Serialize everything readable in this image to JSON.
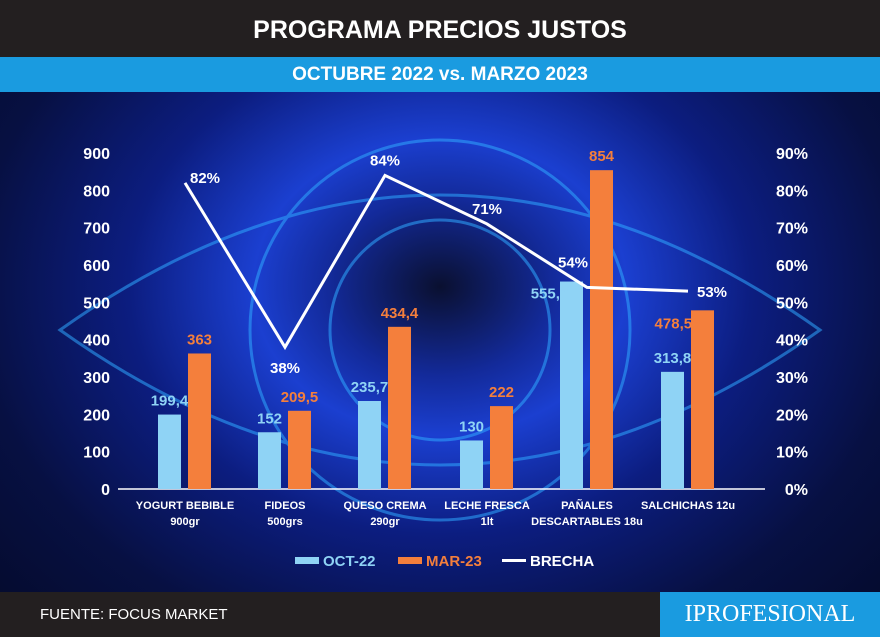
{
  "header": {
    "title": "PROGRAMA PRECIOS JUSTOS",
    "subtitle": "OCTUBRE 2022 vs. MARZO 2023"
  },
  "footer": {
    "source": "FUENTE: FOCUS MARKET",
    "brand": "IPROFESIONAL"
  },
  "chart_data": {
    "type": "bar",
    "categories": [
      [
        "YOGURT BEBIBLE",
        "900gr"
      ],
      [
        "FIDEOS",
        "500grs"
      ],
      [
        "QUESO CREMA",
        "290gr"
      ],
      [
        "LECHE FRESCA",
        "1lt"
      ],
      [
        "PAÑALES",
        "DESCARTABLES 18u"
      ],
      [
        "SALCHICHAS 12u",
        ""
      ]
    ],
    "series": [
      {
        "name": "OCT-22",
        "type": "bar",
        "color": "#8fd3f5",
        "values": [
          199.4,
          152,
          235.7,
          130,
          555.7,
          313.8
        ],
        "labels": [
          "199,4",
          "152",
          "235,7",
          "130",
          "555,7",
          "313,8"
        ],
        "label_color": "#8fd3f5"
      },
      {
        "name": "MAR-23",
        "type": "bar",
        "color": "#f47f3c",
        "values": [
          363,
          209.5,
          434.4,
          222,
          854,
          478.56
        ],
        "labels": [
          "363",
          "209,5",
          "434,4",
          "222",
          "854",
          "478,56"
        ],
        "label_color": "#f47f3c"
      },
      {
        "name": "BRECHA",
        "type": "line",
        "axis": "right",
        "color": "#ffffff",
        "values": [
          82,
          38,
          84,
          71,
          54,
          53
        ],
        "labels": [
          "82%",
          "38%",
          "84%",
          "71%",
          "54%",
          "53%"
        ]
      }
    ],
    "y_left": {
      "range": [
        0,
        900
      ],
      "ticks": [
        "0",
        "100",
        "200",
        "300",
        "400",
        "500",
        "600",
        "700",
        "800",
        "900"
      ]
    },
    "y_right": {
      "range": [
        0,
        90
      ],
      "ticks": [
        "0%",
        "10%",
        "20%",
        "30%",
        "40%",
        "50%",
        "60%",
        "70%",
        "80%",
        "90%"
      ]
    },
    "grid": false,
    "legend": "bottom"
  }
}
